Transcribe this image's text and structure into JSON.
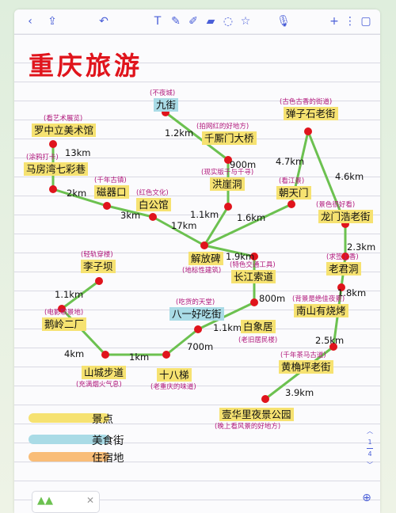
{
  "toolbar": {
    "icons": [
      "chevron-left-icon",
      "share-icon",
      "undo-icon",
      "text-icon",
      "pen-icon",
      "highlighter-icon",
      "eraser-icon",
      "lasso-icon",
      "shape-icon",
      "mic-icon",
      "plus-icon",
      "more-icon",
      "pages-icon"
    ]
  },
  "title": "重庆旅游",
  "spots": [
    {
      "id": "jiujie",
      "name": "九街",
      "type": "food",
      "tag": "不夜城"
    },
    {
      "id": "luozhongli",
      "name": "罗中立美术馆",
      "type": "spot",
      "tag": "看艺术展览"
    },
    {
      "id": "qianshimen",
      "name": "千厮门大桥",
      "type": "spot",
      "tag": "拍网红的好地方"
    },
    {
      "id": "tanzishi",
      "name": "弹子石老街",
      "type": "spot",
      "tag": "古色古香的街道"
    },
    {
      "id": "mafangwan",
      "name": "马房湾七彩巷",
      "type": "spot",
      "tag": "涂鸦打卡"
    },
    {
      "id": "ciqikou",
      "name": "磁器口",
      "type": "spot",
      "tag": "千年古镇"
    },
    {
      "id": "baigongguan",
      "name": "白公馆",
      "type": "spot",
      "tag": "红色文化"
    },
    {
      "id": "hongyadong",
      "name": "洪崖洞",
      "type": "spot",
      "tag": "现实版千与千寻"
    },
    {
      "id": "chaotianmen",
      "name": "朝天门",
      "type": "spot",
      "tag": "看江景"
    },
    {
      "id": "longmenhao",
      "name": "龙门浩老街",
      "type": "spot",
      "tag": "景色很好看"
    },
    {
      "id": "liziba",
      "name": "李子坝",
      "type": "spot",
      "tag": "轻轨穿楼"
    },
    {
      "id": "jiefangbei",
      "name": "解放碑",
      "type": "spot",
      "tag": "地标性建筑"
    },
    {
      "id": "changjiang",
      "name": "长江索道",
      "type": "spot",
      "tag": "特色交通工具"
    },
    {
      "id": "laojundong",
      "name": "老君洞",
      "type": "spot",
      "tag": "求签上香"
    },
    {
      "id": "bayihao",
      "name": "八一好吃街",
      "type": "food",
      "tag": "吃货的天堂"
    },
    {
      "id": "eling",
      "name": "鹅岭二厂",
      "type": "spot",
      "tag": "电影取景地"
    },
    {
      "id": "baixiangju",
      "name": "白象居",
      "type": "spot",
      "tag": "老旧居民楼"
    },
    {
      "id": "nanshan",
      "name": "南山有烧烤",
      "type": "spot",
      "tag": "背景是绝佳夜景"
    },
    {
      "id": "shancheng",
      "name": "山城步道",
      "type": "spot",
      "tag": "充满烟火气息"
    },
    {
      "id": "shibati",
      "name": "十八梯",
      "type": "spot",
      "tag": "老重庆的味道"
    },
    {
      "id": "huangjueping",
      "name": "黄桷坪老街",
      "type": "spot",
      "tag": "千年茶马古道"
    },
    {
      "id": "yihuali",
      "name": "壹华里夜景公园",
      "type": "spot",
      "tag": "晚上看风景的好地方"
    }
  ],
  "distances": {
    "luo_ma": "13km",
    "jiu_qian": "1.2km",
    "ma_ci": "2km",
    "ci_bai": "3km",
    "qian_hong": "900m",
    "tan_chao": "4.7km",
    "tan_long": "4.6km",
    "bai_jie": "17km",
    "hong_jie": "1.1km",
    "chao_jie": "1.6km",
    "long_lao": "2.3km",
    "jie_chang": "1.9km",
    "lao_nan": "1.8km",
    "li_e": "1.1km",
    "chang_bai": "800m",
    "ba_bai": "1.1km",
    "ba_shi": "700m",
    "e_shan": "4km",
    "shan_shi": "1km",
    "nan_huang": "2.5km",
    "huang_yi": "3.9km"
  },
  "legend": [
    {
      "label": "景点",
      "color": "#f6e271"
    },
    {
      "label": "美食街",
      "color": "#a9dbe6"
    },
    {
      "label": "住宿地",
      "color": "#f9bd78"
    }
  ],
  "colors": {
    "line": "#6cc150",
    "dot": "#e0141c",
    "title": "#e0141c",
    "tag": "#b1187c"
  },
  "pager": {
    "current": "1",
    "total": "4"
  }
}
